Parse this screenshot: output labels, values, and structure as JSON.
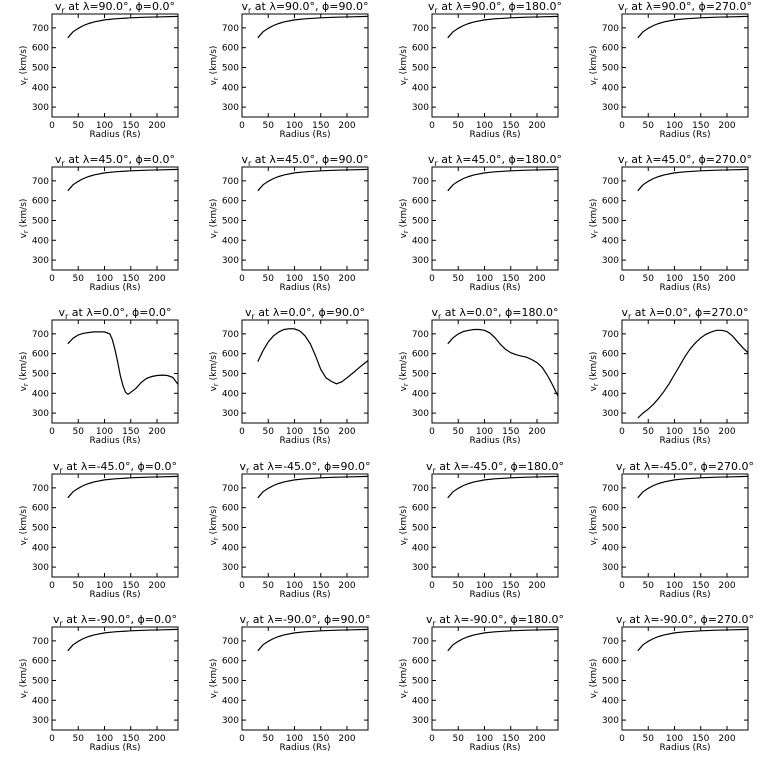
{
  "figure": {
    "title_template": "v{sub} at λ={lat}°, ϕ={lon}°",
    "title_sub": "r",
    "xlabel": "Radius (Rs)",
    "ylabel": "v",
    "ylabel_sub": "r",
    "ylabel_units": "(km/s)",
    "line_color": "#000000",
    "background": "#ffffff"
  },
  "chart_data": [
    {
      "type": "line",
      "lat": "90.0",
      "lon": "0.0",
      "title": "v_r at λ=90.0°, ϕ=0.0°",
      "xlabel": "Radius (Rs)",
      "ylabel": "v_r (km/s)",
      "xlim": [
        0,
        240
      ],
      "ylim": [
        250,
        770
      ],
      "xticks": [
        0,
        50,
        100,
        150,
        200
      ],
      "yticks": [
        300,
        400,
        500,
        600,
        700
      ],
      "x": [
        30,
        35,
        40,
        50,
        60,
        70,
        80,
        100,
        120,
        150,
        180,
        210,
        240
      ],
      "y": [
        650,
        665,
        680,
        698,
        712,
        722,
        730,
        740,
        746,
        751,
        754,
        756,
        758
      ]
    },
    {
      "type": "line",
      "lat": "90.0",
      "lon": "90.0",
      "title": "v_r at λ=90.0°, ϕ=90.0°",
      "xlabel": "Radius (Rs)",
      "ylabel": "v_r (km/s)",
      "xlim": [
        0,
        240
      ],
      "ylim": [
        250,
        770
      ],
      "xticks": [
        0,
        50,
        100,
        150,
        200
      ],
      "yticks": [
        300,
        400,
        500,
        600,
        700
      ],
      "x": [
        30,
        35,
        40,
        50,
        60,
        70,
        80,
        100,
        120,
        150,
        180,
        210,
        240
      ],
      "y": [
        650,
        665,
        680,
        698,
        712,
        722,
        730,
        740,
        746,
        751,
        754,
        756,
        758
      ]
    },
    {
      "type": "line",
      "lat": "90.0",
      "lon": "180.0",
      "title": "v_r at λ=90.0°, ϕ=180.0°",
      "xlabel": "Radius (Rs)",
      "ylabel": "v_r (km/s)",
      "xlim": [
        0,
        240
      ],
      "ylim": [
        250,
        770
      ],
      "xticks": [
        0,
        50,
        100,
        150,
        200
      ],
      "yticks": [
        300,
        400,
        500,
        600,
        700
      ],
      "x": [
        30,
        35,
        40,
        50,
        60,
        70,
        80,
        100,
        120,
        150,
        180,
        210,
        240
      ],
      "y": [
        650,
        665,
        680,
        698,
        712,
        722,
        730,
        740,
        746,
        751,
        754,
        756,
        758
      ]
    },
    {
      "type": "line",
      "lat": "90.0",
      "lon": "270.0",
      "title": "v_r at λ=90.0°, ϕ=270.0°",
      "xlabel": "Radius (Rs)",
      "ylabel": "v_r (km/s)",
      "xlim": [
        0,
        240
      ],
      "ylim": [
        250,
        770
      ],
      "xticks": [
        0,
        50,
        100,
        150,
        200
      ],
      "yticks": [
        300,
        400,
        500,
        600,
        700
      ],
      "x": [
        30,
        35,
        40,
        50,
        60,
        70,
        80,
        100,
        120,
        150,
        180,
        210,
        240
      ],
      "y": [
        650,
        665,
        680,
        698,
        712,
        722,
        730,
        740,
        746,
        751,
        754,
        756,
        758
      ]
    },
    {
      "type": "line",
      "lat": "45.0",
      "lon": "0.0",
      "title": "v_r at λ=45.0°, ϕ=0.0°",
      "xlabel": "Radius (Rs)",
      "ylabel": "v_r (km/s)",
      "xlim": [
        0,
        240
      ],
      "ylim": [
        250,
        770
      ],
      "xticks": [
        0,
        50,
        100,
        150,
        200
      ],
      "yticks": [
        300,
        400,
        500,
        600,
        700
      ],
      "x": [
        30,
        35,
        40,
        50,
        60,
        70,
        80,
        100,
        120,
        150,
        180,
        210,
        240
      ],
      "y": [
        650,
        665,
        680,
        698,
        712,
        722,
        730,
        740,
        746,
        751,
        754,
        756,
        758
      ]
    },
    {
      "type": "line",
      "lat": "45.0",
      "lon": "90.0",
      "title": "v_r at λ=45.0°, ϕ=90.0°",
      "xlabel": "Radius (Rs)",
      "ylabel": "v_r (km/s)",
      "xlim": [
        0,
        240
      ],
      "ylim": [
        250,
        770
      ],
      "xticks": [
        0,
        50,
        100,
        150,
        200
      ],
      "yticks": [
        300,
        400,
        500,
        600,
        700
      ],
      "x": [
        30,
        35,
        40,
        50,
        60,
        70,
        80,
        100,
        120,
        150,
        180,
        210,
        240
      ],
      "y": [
        650,
        665,
        680,
        698,
        712,
        722,
        730,
        740,
        746,
        751,
        754,
        756,
        758
      ]
    },
    {
      "type": "line",
      "lat": "45.0",
      "lon": "180.0",
      "title": "v_r at λ=45.0°, ϕ=180.0°",
      "xlabel": "Radius (Rs)",
      "ylabel": "v_r (km/s)",
      "xlim": [
        0,
        240
      ],
      "ylim": [
        250,
        770
      ],
      "xticks": [
        0,
        50,
        100,
        150,
        200
      ],
      "yticks": [
        300,
        400,
        500,
        600,
        700
      ],
      "x": [
        30,
        35,
        40,
        50,
        60,
        70,
        80,
        100,
        120,
        150,
        180,
        210,
        240
      ],
      "y": [
        650,
        665,
        680,
        698,
        712,
        722,
        730,
        740,
        746,
        751,
        754,
        756,
        758
      ]
    },
    {
      "type": "line",
      "lat": "45.0",
      "lon": "270.0",
      "title": "v_r at λ=45.0°, ϕ=270.0°",
      "xlabel": "Radius (Rs)",
      "ylabel": "v_r (km/s)",
      "xlim": [
        0,
        240
      ],
      "ylim": [
        250,
        770
      ],
      "xticks": [
        0,
        50,
        100,
        150,
        200
      ],
      "yticks": [
        300,
        400,
        500,
        600,
        700
      ],
      "x": [
        30,
        35,
        40,
        50,
        60,
        70,
        80,
        100,
        120,
        150,
        180,
        210,
        240
      ],
      "y": [
        650,
        665,
        680,
        698,
        712,
        722,
        730,
        740,
        746,
        751,
        754,
        756,
        758
      ]
    },
    {
      "type": "line",
      "lat": "0.0",
      "lon": "0.0",
      "title": "v_r at λ=0.0°, ϕ=0.0°",
      "xlabel": "Radius (Rs)",
      "ylabel": "v_r (km/s)",
      "xlim": [
        0,
        240
      ],
      "ylim": [
        250,
        770
      ],
      "xticks": [
        0,
        50,
        100,
        150,
        200
      ],
      "yticks": [
        300,
        400,
        500,
        600,
        700
      ],
      "x": [
        30,
        40,
        50,
        60,
        70,
        80,
        90,
        100,
        110,
        115,
        120,
        125,
        130,
        135,
        140,
        145,
        150,
        160,
        170,
        180,
        190,
        200,
        210,
        220,
        230,
        240
      ],
      "y": [
        650,
        678,
        695,
        703,
        707,
        710,
        710,
        710,
        700,
        670,
        620,
        560,
        490,
        440,
        405,
        395,
        405,
        425,
        455,
        475,
        485,
        490,
        492,
        490,
        480,
        445
      ]
    },
    {
      "type": "line",
      "lat": "0.0",
      "lon": "90.0",
      "title": "v_r at λ=0.0°, ϕ=90.0°",
      "xlabel": "Radius (Rs)",
      "ylabel": "v_r (km/s)",
      "xlim": [
        0,
        240
      ],
      "ylim": [
        250,
        770
      ],
      "xticks": [
        0,
        50,
        100,
        150,
        200
      ],
      "yticks": [
        300,
        400,
        500,
        600,
        700
      ],
      "x": [
        30,
        40,
        50,
        60,
        70,
        80,
        90,
        100,
        110,
        120,
        130,
        140,
        150,
        160,
        170,
        180,
        190,
        200,
        210,
        220,
        230,
        240
      ],
      "y": [
        560,
        615,
        660,
        690,
        710,
        722,
        726,
        725,
        715,
        690,
        650,
        590,
        520,
        478,
        460,
        448,
        458,
        478,
        500,
        522,
        545,
        565
      ]
    },
    {
      "type": "line",
      "lat": "0.0",
      "lon": "180.0",
      "title": "v_r at λ=0.0°, ϕ=180.0°",
      "xlabel": "Radius (Rs)",
      "ylabel": "v_r (km/s)",
      "xlim": [
        0,
        240
      ],
      "ylim": [
        250,
        770
      ],
      "xticks": [
        0,
        50,
        100,
        150,
        200
      ],
      "yticks": [
        300,
        400,
        500,
        600,
        700
      ],
      "x": [
        30,
        40,
        50,
        60,
        70,
        80,
        90,
        100,
        110,
        120,
        130,
        140,
        150,
        160,
        170,
        180,
        190,
        200,
        210,
        220,
        230,
        240
      ],
      "y": [
        650,
        680,
        700,
        712,
        718,
        722,
        722,
        718,
        705,
        680,
        648,
        622,
        605,
        595,
        588,
        582,
        570,
        555,
        530,
        490,
        440,
        385
      ]
    },
    {
      "type": "line",
      "lat": "0.0",
      "lon": "270.0",
      "title": "v_r at λ=0.0°, ϕ=270.0°",
      "xlabel": "Radius (Rs)",
      "ylabel": "v_r (km/s)",
      "xlim": [
        0,
        240
      ],
      "ylim": [
        250,
        770
      ],
      "xticks": [
        0,
        50,
        100,
        150,
        200
      ],
      "yticks": [
        300,
        400,
        500,
        600,
        700
      ],
      "x": [
        30,
        40,
        50,
        60,
        70,
        80,
        90,
        100,
        110,
        120,
        130,
        140,
        150,
        160,
        170,
        180,
        190,
        200,
        210,
        220,
        230,
        240
      ],
      "y": [
        275,
        300,
        320,
        345,
        375,
        410,
        450,
        495,
        540,
        585,
        625,
        655,
        680,
        698,
        710,
        718,
        718,
        712,
        690,
        660,
        630,
        605
      ]
    },
    {
      "type": "line",
      "lat": "-45.0",
      "lon": "0.0",
      "title": "v_r at λ=-45.0°, ϕ=0.0°",
      "xlabel": "Radius (Rs)",
      "ylabel": "v_r (km/s)",
      "xlim": [
        0,
        240
      ],
      "ylim": [
        250,
        770
      ],
      "xticks": [
        0,
        50,
        100,
        150,
        200
      ],
      "yticks": [
        300,
        400,
        500,
        600,
        700
      ],
      "x": [
        30,
        35,
        40,
        50,
        60,
        70,
        80,
        100,
        120,
        150,
        180,
        210,
        240
      ],
      "y": [
        650,
        665,
        680,
        698,
        712,
        722,
        730,
        740,
        746,
        751,
        754,
        756,
        758
      ]
    },
    {
      "type": "line",
      "lat": "-45.0",
      "lon": "90.0",
      "title": "v_r at λ=-45.0°, ϕ=90.0°",
      "xlabel": "Radius (Rs)",
      "ylabel": "v_r (km/s)",
      "xlim": [
        0,
        240
      ],
      "ylim": [
        250,
        770
      ],
      "xticks": [
        0,
        50,
        100,
        150,
        200
      ],
      "yticks": [
        300,
        400,
        500,
        600,
        700
      ],
      "x": [
        30,
        35,
        40,
        50,
        60,
        70,
        80,
        100,
        120,
        150,
        180,
        210,
        240
      ],
      "y": [
        650,
        665,
        680,
        698,
        712,
        722,
        730,
        740,
        746,
        751,
        754,
        756,
        758
      ]
    },
    {
      "type": "line",
      "lat": "-45.0",
      "lon": "180.0",
      "title": "v_r at λ=-45.0°, ϕ=180.0°",
      "xlabel": "Radius (Rs)",
      "ylabel": "v_r (km/s)",
      "xlim": [
        0,
        240
      ],
      "ylim": [
        250,
        770
      ],
      "xticks": [
        0,
        50,
        100,
        150,
        200
      ],
      "yticks": [
        300,
        400,
        500,
        600,
        700
      ],
      "x": [
        30,
        35,
        40,
        50,
        60,
        70,
        80,
        100,
        120,
        150,
        180,
        210,
        240
      ],
      "y": [
        650,
        665,
        680,
        698,
        712,
        722,
        730,
        740,
        746,
        751,
        754,
        756,
        758
      ]
    },
    {
      "type": "line",
      "lat": "-45.0",
      "lon": "270.0",
      "title": "v_r at λ=-45.0°, ϕ=270.0°",
      "xlabel": "Radius (Rs)",
      "ylabel": "v_r (km/s)",
      "xlim": [
        0,
        240
      ],
      "ylim": [
        250,
        770
      ],
      "xticks": [
        0,
        50,
        100,
        150,
        200
      ],
      "yticks": [
        300,
        400,
        500,
        600,
        700
      ],
      "x": [
        30,
        35,
        40,
        50,
        60,
        70,
        80,
        100,
        120,
        150,
        180,
        210,
        240
      ],
      "y": [
        650,
        665,
        680,
        698,
        712,
        722,
        730,
        740,
        746,
        751,
        754,
        756,
        758
      ]
    },
    {
      "type": "line",
      "lat": "-90.0",
      "lon": "0.0",
      "title": "v_r at λ=-90.0°, ϕ=0.0°",
      "xlabel": "Radius (Rs)",
      "ylabel": "v_r (km/s)",
      "xlim": [
        0,
        240
      ],
      "ylim": [
        250,
        770
      ],
      "xticks": [
        0,
        50,
        100,
        150,
        200
      ],
      "yticks": [
        300,
        400,
        500,
        600,
        700
      ],
      "x": [
        30,
        35,
        40,
        50,
        60,
        70,
        80,
        100,
        120,
        150,
        180,
        210,
        240
      ],
      "y": [
        650,
        665,
        680,
        698,
        712,
        722,
        730,
        740,
        746,
        751,
        754,
        756,
        758
      ]
    },
    {
      "type": "line",
      "lat": "-90.0",
      "lon": "90.0",
      "title": "v_r at λ=-90.0°, ϕ=90.0°",
      "xlabel": "Radius (Rs)",
      "ylabel": "v_r (km/s)",
      "xlim": [
        0,
        240
      ],
      "ylim": [
        250,
        770
      ],
      "xticks": [
        0,
        50,
        100,
        150,
        200
      ],
      "yticks": [
        300,
        400,
        500,
        600,
        700
      ],
      "x": [
        30,
        35,
        40,
        50,
        60,
        70,
        80,
        100,
        120,
        150,
        180,
        210,
        240
      ],
      "y": [
        650,
        665,
        680,
        698,
        712,
        722,
        730,
        740,
        746,
        751,
        754,
        756,
        758
      ]
    },
    {
      "type": "line",
      "lat": "-90.0",
      "lon": "180.0",
      "title": "v_r at λ=-90.0°, ϕ=180.0°",
      "xlabel": "Radius (Rs)",
      "ylabel": "v_r (km/s)",
      "xlim": [
        0,
        240
      ],
      "ylim": [
        250,
        770
      ],
      "xticks": [
        0,
        50,
        100,
        150,
        200
      ],
      "yticks": [
        300,
        400,
        500,
        600,
        700
      ],
      "x": [
        30,
        35,
        40,
        50,
        60,
        70,
        80,
        100,
        120,
        150,
        180,
        210,
        240
      ],
      "y": [
        650,
        665,
        680,
        698,
        712,
        722,
        730,
        740,
        746,
        751,
        754,
        756,
        758
      ]
    },
    {
      "type": "line",
      "lat": "-90.0",
      "lon": "270.0",
      "title": "v_r at λ=-90.0°, ϕ=270.0°",
      "xlabel": "Radius (Rs)",
      "ylabel": "v_r (km/s)",
      "xlim": [
        0,
        240
      ],
      "ylim": [
        250,
        770
      ],
      "xticks": [
        0,
        50,
        100,
        150,
        200
      ],
      "yticks": [
        300,
        400,
        500,
        600,
        700
      ],
      "x": [
        30,
        35,
        40,
        50,
        60,
        70,
        80,
        100,
        120,
        150,
        180,
        210,
        240
      ],
      "y": [
        650,
        665,
        680,
        698,
        712,
        722,
        730,
        740,
        746,
        751,
        754,
        756,
        758
      ]
    }
  ]
}
